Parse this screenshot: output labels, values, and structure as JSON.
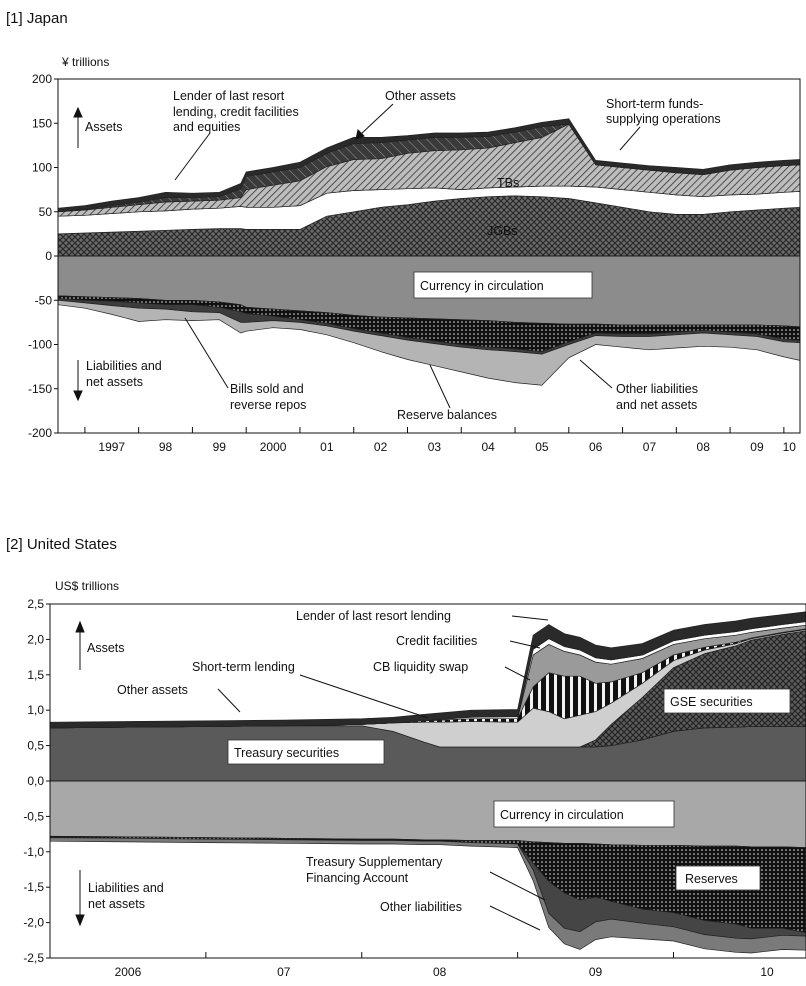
{
  "chart_data": [
    {
      "type": "area",
      "title": "[1] Japan",
      "ylabel": "¥ trillions",
      "ylim": [
        -200,
        200
      ],
      "yticks": [
        200,
        150,
        100,
        50,
        0,
        -50,
        -100,
        -150,
        -200
      ],
      "xticks": [
        "1997",
        "98",
        "99",
        "2000",
        "01",
        "02",
        "03",
        "04",
        "05",
        "06",
        "07",
        "08",
        "09",
        "10"
      ],
      "x": [
        1996.5,
        1997,
        1997.5,
        1998,
        1998.5,
        1999,
        1999.5,
        1999.9,
        2000,
        2000.5,
        2001,
        2001.5,
        2002,
        2002.5,
        2003,
        2003.5,
        2004,
        2004.5,
        2005,
        2005.5,
        2006,
        2006.5,
        2007,
        2007.5,
        2008,
        2008.5,
        2009,
        2009.5,
        2010,
        2010.3
      ],
      "assets_stack": [
        {
          "name": "JGBs",
          "values": [
            25,
            26,
            27,
            28,
            29,
            30,
            31,
            31,
            30,
            30,
            30,
            45,
            50,
            55,
            58,
            62,
            65,
            67,
            68,
            67,
            65,
            60,
            55,
            50,
            47,
            47,
            50,
            52,
            54,
            55
          ]
        },
        {
          "name": "TBs",
          "values": [
            20,
            20,
            21,
            22,
            22,
            23,
            23,
            25,
            25,
            25,
            27,
            26,
            24,
            20,
            18,
            15,
            10,
            10,
            10,
            12,
            14,
            18,
            20,
            22,
            22,
            20,
            19,
            18,
            18,
            18
          ]
        },
        {
          "name": "Short-term funds-supplying operations",
          "values": [
            5,
            6,
            7,
            8,
            10,
            9,
            9,
            10,
            20,
            25,
            28,
            30,
            35,
            35,
            40,
            42,
            45,
            45,
            50,
            55,
            70,
            25,
            25,
            25,
            25,
            25,
            28,
            30,
            30,
            30
          ]
        },
        {
          "name": "Lender of last resort lending, credit facilities and equities",
          "values": [
            0,
            1,
            2,
            3,
            5,
            4,
            4,
            10,
            15,
            15,
            15,
            15,
            18,
            18,
            15,
            15,
            14,
            13,
            12,
            12,
            0,
            0,
            0,
            0,
            0,
            0,
            0,
            0,
            0,
            0
          ]
        },
        {
          "name": "Other assets",
          "values": [
            4,
            4,
            5,
            5,
            6,
            5,
            5,
            6,
            5,
            5,
            6,
            6,
            7,
            6,
            5,
            5,
            5,
            5,
            5,
            5,
            6,
            5,
            5,
            5,
            6,
            6,
            6,
            6,
            6,
            6
          ]
        }
      ],
      "liabilities_stack": [
        {
          "name": "Currency in circulation",
          "values": [
            -45,
            -46,
            -47,
            -48,
            -50,
            -50,
            -52,
            -55,
            -58,
            -60,
            -62,
            -64,
            -67,
            -69,
            -70,
            -71,
            -72,
            -73,
            -75,
            -76,
            -77,
            -77,
            -78,
            -78,
            -78,
            -78,
            -78,
            -78,
            -79,
            -80
          ]
        },
        {
          "name": "Reserve balances",
          "values": [
            -3,
            -4,
            -4,
            -5,
            -5,
            -5,
            -6,
            -8,
            -7,
            -8,
            -10,
            -12,
            -15,
            -18,
            -22,
            -25,
            -28,
            -30,
            -30,
            -32,
            -20,
            -10,
            -10,
            -10,
            -8,
            -6,
            -8,
            -10,
            -15,
            -15
          ]
        },
        {
          "name": "Bills sold and reverse repos",
          "values": [
            -2,
            -3,
            -5,
            -6,
            -5,
            -8,
            -6,
            -12,
            -10,
            -5,
            -3,
            -3,
            -3,
            -3,
            -3,
            -3,
            -3,
            -3,
            -3,
            -3,
            -3,
            -3,
            -3,
            -3,
            -3,
            -3,
            -3,
            -3,
            -3,
            -3
          ]
        },
        {
          "name": "Other liabilities and net assets",
          "values": [
            -5,
            -6,
            -10,
            -15,
            -12,
            -10,
            -8,
            -12,
            -10,
            -8,
            -8,
            -10,
            -13,
            -18,
            -22,
            -25,
            -28,
            -32,
            -35,
            -35,
            -15,
            -10,
            -12,
            -15,
            -15,
            -15,
            -14,
            -15,
            -17,
            -20
          ]
        }
      ],
      "labels": {
        "assets": "Assets",
        "liabilities_line1": "Liabilities and",
        "liabilities_line2": "net assets",
        "lender_line1": "Lender of last resort",
        "lender_line2": "lending, credit facilities",
        "lender_line3": "and equities",
        "other_assets": "Other assets",
        "short_term_line1": "Short-term funds-",
        "short_term_line2": "supplying operations",
        "tbs": "TBs",
        "jgbs": "JGBs",
        "currency": "Currency in circulation",
        "bills_line1": "Bills sold and",
        "bills_line2": "reverse repos",
        "reserve": "Reserve balances",
        "other_liab_line1": "Other liabilities",
        "other_liab_line2": "and net assets"
      }
    },
    {
      "type": "area",
      "title": "[2] United States",
      "ylabel": "US$ trillions",
      "ylim": [
        -2.5,
        2.5
      ],
      "yticks": [
        "2,5",
        "2,0",
        "1,5",
        "1,0",
        "0,5",
        "0,0",
        "-0,5",
        "-1,0",
        "-1,5",
        "-2,0",
        "-2,5"
      ],
      "xticks": [
        "2006",
        "07",
        "08",
        "09",
        "10"
      ],
      "x": [
        2005.5,
        2006,
        2006.5,
        2007,
        2007.5,
        2007.7,
        2007.9,
        2008,
        2008.2,
        2008.5,
        2008.6,
        2008.7,
        2008.8,
        2008.9,
        2009,
        2009.1,
        2009.3,
        2009.5,
        2009.7,
        2009.9,
        2010,
        2010.2,
        2010.35
      ],
      "assets_stack": [
        {
          "name": "Treasury securities",
          "values": [
            0.75,
            0.76,
            0.77,
            0.78,
            0.78,
            0.7,
            0.55,
            0.48,
            0.48,
            0.48,
            0.48,
            0.48,
            0.48,
            0.48,
            0.48,
            0.5,
            0.58,
            0.7,
            0.75,
            0.76,
            0.77,
            0.77,
            0.77
          ]
        },
        {
          "name": "GSE securities",
          "values": [
            0,
            0,
            0,
            0,
            0,
            0,
            0,
            0,
            0,
            0,
            0,
            0,
            0,
            0,
            0.1,
            0.3,
            0.6,
            0.9,
            1.05,
            1.15,
            1.22,
            1.3,
            1.35
          ]
        },
        {
          "name": "Short-term lending",
          "values": [
            0,
            0,
            0,
            0,
            0.02,
            0.12,
            0.28,
            0.35,
            0.36,
            0.35,
            0.55,
            0.5,
            0.4,
            0.45,
            0.4,
            0.3,
            0.2,
            0.1,
            0.05,
            0.03,
            0.02,
            0.02,
            0.02
          ]
        },
        {
          "name": "CB liquidity swap",
          "values": [
            0,
            0,
            0,
            0,
            0,
            0,
            0.02,
            0.03,
            0.04,
            0.05,
            0.3,
            0.55,
            0.6,
            0.55,
            0.4,
            0.3,
            0.15,
            0.08,
            0.04,
            0.02,
            0.01,
            0.01,
            0.01
          ]
        },
        {
          "name": "Credit facilities",
          "values": [
            0,
            0,
            0,
            0,
            0,
            0,
            0,
            0,
            0,
            0,
            0.45,
            0.4,
            0.35,
            0.3,
            0.3,
            0.25,
            0.2,
            0.15,
            0.12,
            0.1,
            0.08,
            0.06,
            0.05
          ]
        },
        {
          "name": "Lender of last resort lending",
          "values": [
            0,
            0,
            0,
            0,
            0,
            0,
            0,
            0.01,
            0.02,
            0.03,
            0.08,
            0.08,
            0.07,
            0.07,
            0.06,
            0.06,
            0.05,
            0.05,
            0.05,
            0.05,
            0.05,
            0.05,
            0.05
          ]
        },
        {
          "name": "Other assets",
          "values": [
            0.08,
            0.08,
            0.08,
            0.08,
            0.08,
            0.08,
            0.09,
            0.09,
            0.1,
            0.1,
            0.2,
            0.2,
            0.18,
            0.18,
            0.18,
            0.17,
            0.16,
            0.15,
            0.15,
            0.15,
            0.15,
            0.14,
            0.14
          ]
        }
      ],
      "liabilities_stack": [
        {
          "name": "Currency in circulation",
          "values": [
            -0.78,
            -0.79,
            -0.8,
            -0.81,
            -0.82,
            -0.82,
            -0.83,
            -0.83,
            -0.84,
            -0.84,
            -0.86,
            -0.87,
            -0.88,
            -0.88,
            -0.89,
            -0.9,
            -0.91,
            -0.91,
            -0.92,
            -0.92,
            -0.93,
            -0.93,
            -0.94
          ]
        },
        {
          "name": "Reserves",
          "values": [
            -0.02,
            -0.02,
            -0.02,
            -0.02,
            -0.02,
            -0.02,
            -0.02,
            -0.02,
            -0.03,
            -0.05,
            -0.3,
            -0.55,
            -0.7,
            -0.8,
            -0.75,
            -0.8,
            -0.9,
            -0.95,
            -1.05,
            -1.1,
            -1.15,
            -1.15,
            -1.2
          ]
        },
        {
          "name": "Treasury Supplementary Financing Account",
          "values": [
            0,
            0,
            0,
            0,
            0,
            0,
            0,
            0,
            0,
            0,
            -0.1,
            -0.45,
            -0.5,
            -0.45,
            -0.35,
            -0.25,
            -0.2,
            -0.2,
            -0.2,
            -0.2,
            -0.15,
            -0.1,
            -0.05
          ]
        },
        {
          "name": "Other liabilities",
          "values": [
            -0.05,
            -0.05,
            -0.05,
            -0.05,
            -0.05,
            -0.05,
            -0.05,
            -0.05,
            -0.05,
            -0.05,
            -0.15,
            -0.2,
            -0.22,
            -0.25,
            -0.25,
            -0.25,
            -0.22,
            -0.2,
            -0.2,
            -0.2,
            -0.2,
            -0.2,
            -0.2
          ]
        }
      ],
      "labels": {
        "assets": "Assets",
        "liabilities_line1": "Liabilities and",
        "liabilities_line2": "net assets",
        "lender": "Lender of last resort lending",
        "credit": "Credit facilities",
        "short_term": "Short-term lending",
        "cb_swap": "CB liquidity swap",
        "other_assets": "Other assets",
        "gse": "GSE securities",
        "treasury": "Treasury securities",
        "currency": "Currency in circulation",
        "tsfa_line1": "Treasury Supplementary",
        "tsfa_line2": "Financing Account",
        "reserves": "Reserves",
        "other_liab": "Other liabilities"
      }
    }
  ]
}
